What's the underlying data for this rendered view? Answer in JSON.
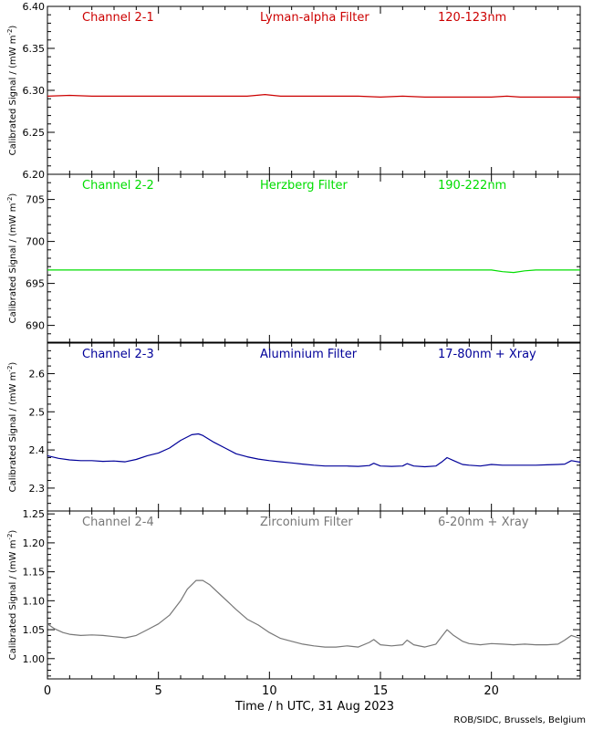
{
  "chart_data": {
    "type": "line",
    "xlabel": "Time / h UTC, 31 Aug 2023",
    "xlim": [
      0,
      24
    ],
    "x_ticks": [
      0,
      5,
      10,
      15,
      20
    ],
    "credit": "ROB/SIDC, Brussels, Belgium",
    "panels": [
      {
        "channel": "Channel 2-1",
        "filter": "Lyman-alpha Filter",
        "band": "120-123nm",
        "ylabel": "Calibrated Signal / (mW m",
        "ylabel_exp": "-2",
        "ylabel_close": ")",
        "ylim": [
          6.2,
          6.4
        ],
        "y_ticks": [
          6.2,
          6.25,
          6.3,
          6.35,
          6.4
        ],
        "y_tick_labels": [
          "6.20",
          "6.25",
          "6.30",
          "6.35",
          "6.40"
        ],
        "color": "#cc0000",
        "series": [
          {
            "x": [
              0,
              1,
              2,
              3,
              4,
              5,
              6,
              7,
              8,
              9,
              9.8,
              10.5,
              11,
              12,
              13,
              14,
              15,
              16,
              17,
              18,
              19,
              20,
              20.7,
              21.3,
              22,
              23,
              24
            ],
            "y": [
              6.293,
              6.294,
              6.293,
              6.293,
              6.293,
              6.293,
              6.293,
              6.293,
              6.293,
              6.293,
              6.295,
              6.293,
              6.293,
              6.293,
              6.293,
              6.293,
              6.292,
              6.293,
              6.292,
              6.292,
              6.292,
              6.292,
              6.293,
              6.292,
              6.292,
              6.292,
              6.292
            ]
          }
        ]
      },
      {
        "channel": "Channel 2-2",
        "filter": "Herzberg Filter",
        "band": "190-222nm",
        "ylabel": "Calibrated Signal / (mW m",
        "ylabel_exp": "-2",
        "ylabel_close": ")",
        "ylim": [
          688,
          708
        ],
        "y_ticks": [
          690,
          695,
          700,
          705
        ],
        "y_tick_labels": [
          "690",
          "695",
          "700",
          "705"
        ],
        "color": "#00dd00",
        "series": [
          {
            "x": [
              0,
              2,
              4,
              6,
              8,
              10,
              12,
              14,
              16,
              18,
              20,
              20.5,
              21,
              21.5,
              22,
              24
            ],
            "y": [
              696.6,
              696.6,
              696.6,
              696.6,
              696.6,
              696.6,
              696.6,
              696.6,
              696.6,
              696.6,
              696.6,
              696.4,
              696.3,
              696.5,
              696.6,
              696.6
            ]
          }
        ]
      },
      {
        "channel": "Channel 2-3",
        "filter": "Aluminium Filter",
        "band": "17-80nm + Xray",
        "ylabel": "Calibrated Signal / (mW m",
        "ylabel_exp": "-2",
        "ylabel_close": ")",
        "ylim": [
          2.24,
          2.68
        ],
        "y_ticks": [
          2.3,
          2.4,
          2.5,
          2.6
        ],
        "y_tick_labels": [
          "2.3",
          "2.4",
          "2.5",
          "2.6"
        ],
        "color": "#000099",
        "series": [
          {
            "x": [
              0,
              0.5,
              1,
              1.5,
              2,
              2.5,
              3,
              3.5,
              4,
              4.5,
              5,
              5.5,
              6,
              6.5,
              6.8,
              7,
              7.5,
              8,
              8.5,
              9,
              9.5,
              10,
              10.5,
              11,
              11.5,
              12,
              12.5,
              13,
              13.5,
              14,
              14.5,
              14.7,
              15,
              15.5,
              16,
              16.2,
              16.5,
              17,
              17.5,
              17.8,
              18,
              18.3,
              18.7,
              19,
              19.5,
              20,
              20.5,
              21,
              21.5,
              22,
              22.5,
              23,
              23.3,
              23.6,
              24
            ],
            "y": [
              2.385,
              2.378,
              2.374,
              2.372,
              2.372,
              2.37,
              2.371,
              2.369,
              2.375,
              2.385,
              2.392,
              2.405,
              2.425,
              2.44,
              2.442,
              2.438,
              2.42,
              2.405,
              2.39,
              2.382,
              2.376,
              2.372,
              2.369,
              2.366,
              2.363,
              2.36,
              2.358,
              2.358,
              2.358,
              2.357,
              2.359,
              2.365,
              2.358,
              2.357,
              2.358,
              2.364,
              2.358,
              2.356,
              2.358,
              2.37,
              2.38,
              2.372,
              2.362,
              2.36,
              2.358,
              2.362,
              2.36,
              2.36,
              2.36,
              2.36,
              2.361,
              2.362,
              2.363,
              2.372,
              2.368
            ]
          }
        ]
      },
      {
        "channel": "Channel 2-4",
        "filter": "Zirconium Filter",
        "band": "6-20nm + Xray",
        "ylabel": "Calibrated Signal / (mW m",
        "ylabel_exp": "-2",
        "ylabel_close": ")",
        "ylim": [
          0.965,
          1.255
        ],
        "y_ticks": [
          1.0,
          1.05,
          1.1,
          1.15,
          1.2,
          1.25
        ],
        "y_tick_labels": [
          "1.00",
          "1.05",
          "1.10",
          "1.15",
          "1.20",
          "1.25"
        ],
        "color": "#777777",
        "series": [
          {
            "x": [
              0,
              0.3,
              0.7,
              1,
              1.5,
              2,
              2.5,
              3,
              3.5,
              4,
              4.5,
              5,
              5.5,
              6,
              6.3,
              6.7,
              7,
              7.3,
              7.8,
              8.5,
              9,
              9.5,
              10,
              10.5,
              11,
              11.5,
              12,
              12.5,
              13,
              13.5,
              14,
              14.5,
              14.7,
              15,
              15.5,
              16,
              16.2,
              16.5,
              17,
              17.5,
              17.8,
              18,
              18.3,
              18.7,
              19,
              19.5,
              20,
              20.5,
              21,
              21.5,
              22,
              22.5,
              23,
              23.3,
              23.6,
              24
            ],
            "y": [
              1.06,
              1.052,
              1.045,
              1.042,
              1.04,
              1.041,
              1.04,
              1.038,
              1.036,
              1.04,
              1.05,
              1.06,
              1.075,
              1.1,
              1.12,
              1.135,
              1.135,
              1.128,
              1.11,
              1.085,
              1.068,
              1.058,
              1.045,
              1.035,
              1.03,
              1.025,
              1.022,
              1.02,
              1.02,
              1.022,
              1.02,
              1.028,
              1.033,
              1.024,
              1.022,
              1.024,
              1.032,
              1.024,
              1.02,
              1.025,
              1.04,
              1.05,
              1.04,
              1.03,
              1.026,
              1.024,
              1.026,
              1.025,
              1.024,
              1.025,
              1.024,
              1.024,
              1.025,
              1.032,
              1.04,
              1.035
            ]
          }
        ]
      }
    ]
  }
}
